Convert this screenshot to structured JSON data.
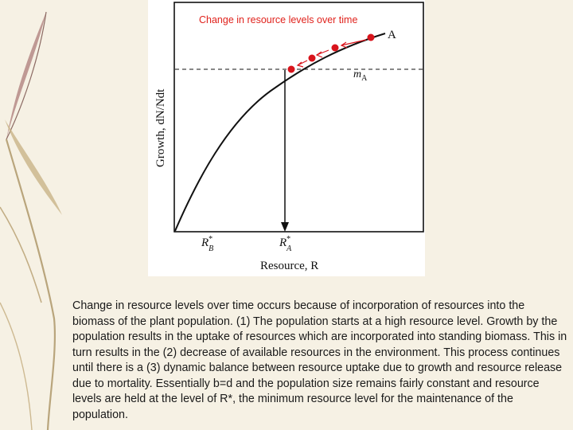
{
  "chart_data": {
    "type": "line",
    "title": "Change in resource levels over time",
    "xlabel": "Resource, R",
    "ylabel": "Growth, dN/Ndt",
    "x_tick_labels": [
      "R*B",
      "R*A"
    ],
    "curve_label": "A",
    "mortality_label": "mA",
    "points_count": 4,
    "colors": {
      "title": "#e0221c",
      "points": "#d8141c",
      "curve": "#111111"
    }
  },
  "caption": "Change in resource levels over time occurs because of incorporation of resources into the biomass of the plant population. (1) The population starts at a high resource level. Growth by the population results in the uptake of resources which are incorporated into standing biomass. This in turn results in the (2) decrease of available resources in the environment. This process continues until there is a (3) dynamic balance between resource uptake due to growth and resource release due to mortality. Essentially b=d and the population size remains fairly constant and resource levels are held at the level of R*, the minimum resource level for the maintenance of the population."
}
